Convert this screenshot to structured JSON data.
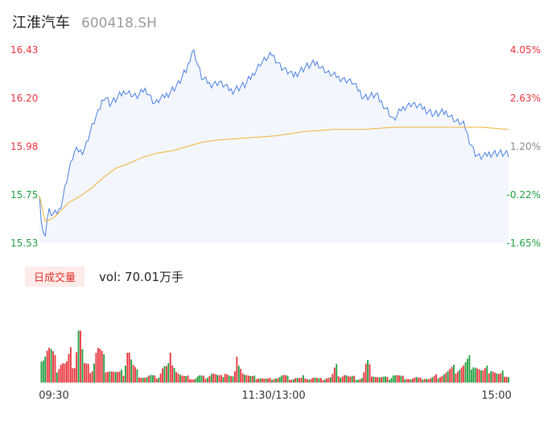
{
  "header": {
    "name": "江淮汽车",
    "code": "600418.SH"
  },
  "colors": {
    "up": "#e8333a",
    "down": "#1e9e3e",
    "price_line": "#4a7fe0",
    "avg_line": "#f0b236",
    "area_fill": "#f3f6fc"
  },
  "volume": {
    "tab_label": "日成交量",
    "summary": "vol: 70.01万手"
  },
  "chart_data": [
    {
      "type": "line",
      "title": "",
      "prev_close": 15.8,
      "y_ticks_left": [
        "16.43",
        "16.20",
        "15.98",
        "15.75",
        "15.53"
      ],
      "y_ticks_right": [
        "4.05%",
        "2.63%",
        "1.20%",
        "-0.22%",
        "-1.65%"
      ],
      "ylim": [
        15.53,
        16.43
      ],
      "x_ticks": [
        "09:30",
        "11:30/13:00",
        "15:00"
      ],
      "price_keypoints": [
        [
          0,
          15.77
        ],
        [
          2,
          15.56
        ],
        [
          4,
          15.58
        ],
        [
          6,
          15.68
        ],
        [
          10,
          15.66
        ],
        [
          14,
          15.69
        ],
        [
          20,
          15.87
        ],
        [
          24,
          15.96
        ],
        [
          30,
          15.96
        ],
        [
          36,
          16.08
        ],
        [
          40,
          16.14
        ],
        [
          44,
          16.22
        ],
        [
          48,
          16.18
        ],
        [
          52,
          16.2
        ],
        [
          58,
          16.24
        ],
        [
          66,
          16.21
        ],
        [
          72,
          16.25
        ],
        [
          78,
          16.18
        ],
        [
          86,
          16.22
        ],
        [
          94,
          16.27
        ],
        [
          100,
          16.34
        ],
        [
          104,
          16.44
        ],
        [
          110,
          16.3
        ],
        [
          116,
          16.27
        ],
        [
          122,
          16.28
        ],
        [
          130,
          16.24
        ],
        [
          140,
          16.27
        ],
        [
          150,
          16.37
        ],
        [
          158,
          16.41
        ],
        [
          164,
          16.35
        ],
        [
          172,
          16.31
        ],
        [
          180,
          16.35
        ],
        [
          188,
          16.37
        ],
        [
          196,
          16.32
        ],
        [
          204,
          16.3
        ],
        [
          212,
          16.28
        ],
        [
          220,
          16.21
        ],
        [
          228,
          16.22
        ],
        [
          236,
          16.15
        ],
        [
          240,
          16.1
        ],
        [
          246,
          16.16
        ],
        [
          252,
          16.18
        ],
        [
          260,
          16.16
        ],
        [
          268,
          16.13
        ],
        [
          276,
          16.14
        ],
        [
          282,
          16.1
        ],
        [
          288,
          16.08
        ],
        [
          292,
          16.0
        ],
        [
          296,
          15.94
        ],
        [
          300,
          15.93
        ],
        [
          306,
          15.95
        ],
        [
          312,
          15.95
        ],
        [
          318,
          15.94
        ]
      ],
      "avg_keypoints": [
        [
          0,
          15.75
        ],
        [
          4,
          15.63
        ],
        [
          10,
          15.65
        ],
        [
          20,
          15.72
        ],
        [
          28,
          15.75
        ],
        [
          36,
          15.79
        ],
        [
          44,
          15.84
        ],
        [
          52,
          15.88
        ],
        [
          60,
          15.9
        ],
        [
          70,
          15.93
        ],
        [
          80,
          15.95
        ],
        [
          90,
          15.96
        ],
        [
          100,
          15.98
        ],
        [
          110,
          16.0
        ],
        [
          120,
          16.01
        ],
        [
          140,
          16.02
        ],
        [
          160,
          16.03
        ],
        [
          180,
          16.05
        ],
        [
          200,
          16.06
        ],
        [
          220,
          16.06
        ],
        [
          240,
          16.07
        ],
        [
          260,
          16.07
        ],
        [
          280,
          16.07
        ],
        [
          300,
          16.07
        ],
        [
          318,
          16.06
        ]
      ]
    },
    {
      "type": "bar",
      "title": "日成交量",
      "unit": "万手",
      "total": 70.01,
      "volume_keypoints": [
        [
          0,
          1.9
        ],
        [
          3,
          1.6
        ],
        [
          6,
          2.0
        ],
        [
          9,
          1.5
        ],
        [
          12,
          0.9
        ],
        [
          15,
          1.3
        ],
        [
          18,
          1.0
        ],
        [
          21,
          1.6
        ],
        [
          24,
          1.2
        ],
        [
          27,
          3.9
        ],
        [
          30,
          1.0
        ],
        [
          33,
          0.8
        ],
        [
          36,
          0.9
        ],
        [
          39,
          2.1
        ],
        [
          42,
          1.6
        ],
        [
          45,
          1.0
        ],
        [
          48,
          0.8
        ],
        [
          51,
          0.6
        ],
        [
          54,
          0.5
        ],
        [
          57,
          0.6
        ],
        [
          60,
          2.3
        ],
        [
          63,
          1.0
        ],
        [
          66,
          0.6
        ],
        [
          69,
          0.4
        ],
        [
          72,
          0.3
        ],
        [
          75,
          0.4
        ],
        [
          78,
          0.3
        ],
        [
          81,
          0.4
        ],
        [
          84,
          1.0
        ],
        [
          87,
          0.8
        ],
        [
          90,
          1.7
        ],
        [
          93,
          0.7
        ],
        [
          96,
          0.4
        ],
        [
          99,
          0.3
        ],
        [
          102,
          0.3
        ],
        [
          105,
          0.2
        ],
        [
          108,
          0.4
        ],
        [
          111,
          0.3
        ],
        [
          114,
          0.4
        ],
        [
          117,
          0.6
        ],
        [
          120,
          0.4
        ],
        [
          123,
          0.3
        ],
        [
          126,
          0.7
        ],
        [
          129,
          0.4
        ],
        [
          132,
          0.3
        ],
        [
          135,
          1.7
        ],
        [
          138,
          0.6
        ],
        [
          141,
          0.4
        ],
        [
          144,
          0.3
        ],
        [
          147,
          0.3
        ],
        [
          150,
          0.3
        ],
        [
          153,
          0.2
        ],
        [
          156,
          0.2
        ],
        [
          159,
          0.3
        ],
        [
          162,
          0.3
        ],
        [
          165,
          0.4
        ],
        [
          168,
          0.3
        ],
        [
          171,
          0.2
        ],
        [
          174,
          0.3
        ],
        [
          177,
          0.2
        ],
        [
          180,
          0.4
        ],
        [
          183,
          0.2
        ],
        [
          186,
          0.3
        ],
        [
          189,
          0.2
        ],
        [
          192,
          0.2
        ],
        [
          195,
          0.3
        ],
        [
          198,
          0.3
        ],
        [
          201,
          0.9
        ],
        [
          204,
          0.4
        ],
        [
          207,
          0.5
        ],
        [
          210,
          0.3
        ],
        [
          213,
          0.3
        ],
        [
          216,
          0.2
        ],
        [
          219,
          0.3
        ],
        [
          222,
          1.2
        ],
        [
          225,
          0.6
        ],
        [
          228,
          0.4
        ],
        [
          231,
          0.3
        ],
        [
          234,
          0.3
        ],
        [
          237,
          0.2
        ],
        [
          240,
          0.5
        ],
        [
          243,
          0.4
        ],
        [
          246,
          0.3
        ],
        [
          249,
          0.3
        ],
        [
          252,
          0.2
        ],
        [
          255,
          0.3
        ],
        [
          258,
          0.2
        ],
        [
          261,
          0.3
        ],
        [
          264,
          0.2
        ],
        [
          267,
          0.3
        ],
        [
          270,
          0.4
        ],
        [
          273,
          0.5
        ],
        [
          276,
          0.6
        ],
        [
          279,
          0.7
        ],
        [
          282,
          0.8
        ],
        [
          285,
          0.9
        ],
        [
          288,
          1.0
        ],
        [
          291,
          1.2
        ],
        [
          294,
          1.3
        ],
        [
          297,
          0.9
        ],
        [
          300,
          0.6
        ],
        [
          303,
          0.7
        ],
        [
          306,
          0.9
        ],
        [
          309,
          0.6
        ],
        [
          312,
          0.4
        ],
        [
          315,
          0.6
        ],
        [
          318,
          0.4
        ]
      ]
    }
  ]
}
